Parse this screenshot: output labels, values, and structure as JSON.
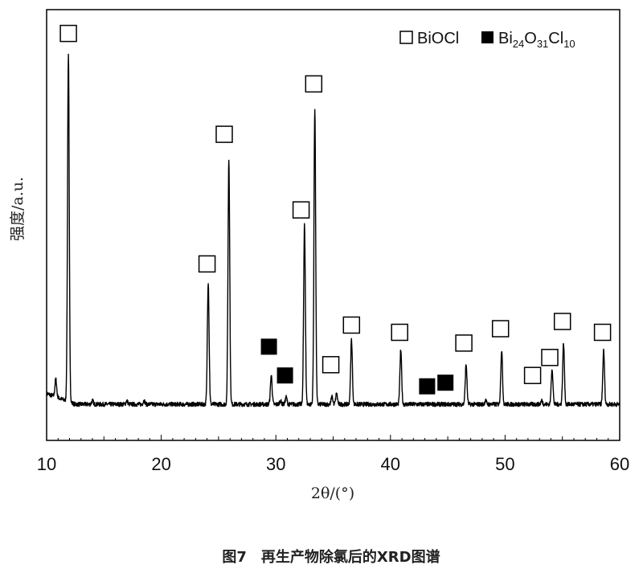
{
  "chart_data": {
    "type": "line",
    "xlabel": "2θ/(°)",
    "ylabel": "强度/a.u.",
    "xlim": [
      10,
      60
    ],
    "xticks": [
      10,
      20,
      30,
      40,
      50,
      60
    ],
    "grid": false,
    "legend": {
      "placement": "top-right",
      "entries": [
        {
          "marker": "open-square",
          "label": "BiOCl"
        },
        {
          "marker": "filled-square",
          "label_parts": [
            "Bi",
            "24",
            "O",
            "31",
            "Cl",
            "10"
          ]
        }
      ]
    },
    "baseline": 0.04,
    "peaks": [
      {
        "two_theta": 10.8,
        "intensity": 0.09,
        "phase": null
      },
      {
        "two_theta": 11.9,
        "intensity": 1.0,
        "phase": "BiOCl"
      },
      {
        "two_theta": 14.0,
        "intensity": 0.05,
        "phase": null
      },
      {
        "two_theta": 17.0,
        "intensity": 0.05,
        "phase": null
      },
      {
        "two_theta": 18.5,
        "intensity": 0.05,
        "phase": null
      },
      {
        "two_theta": 24.1,
        "intensity": 0.38,
        "phase": "BiOCl"
      },
      {
        "two_theta": 25.9,
        "intensity": 0.72,
        "phase": "BiOCl"
      },
      {
        "two_theta": 29.6,
        "intensity": 0.12,
        "phase": "Bi24O31Cl10"
      },
      {
        "two_theta": 30.4,
        "intensity": 0.05,
        "phase": null
      },
      {
        "two_theta": 30.9,
        "intensity": 0.06,
        "phase": "Bi24O31Cl10"
      },
      {
        "two_theta": 32.5,
        "intensity": 0.54,
        "phase": "BiOCl"
      },
      {
        "two_theta": 33.4,
        "intensity": 0.86,
        "phase": "BiOCl"
      },
      {
        "two_theta": 34.9,
        "intensity": 0.06,
        "phase": "BiOCl"
      },
      {
        "two_theta": 35.3,
        "intensity": 0.07,
        "phase": null
      },
      {
        "two_theta": 36.6,
        "intensity": 0.22,
        "phase": "BiOCl"
      },
      {
        "two_theta": 40.9,
        "intensity": 0.19,
        "phase": "BiOCl"
      },
      {
        "two_theta": 43.1,
        "intensity": 0.04,
        "phase": "Bi24O31Cl10"
      },
      {
        "two_theta": 44.9,
        "intensity": 0.04,
        "phase": "Bi24O31Cl10"
      },
      {
        "two_theta": 46.6,
        "intensity": 0.15,
        "phase": "BiOCl"
      },
      {
        "two_theta": 48.3,
        "intensity": 0.05,
        "phase": null
      },
      {
        "two_theta": 49.7,
        "intensity": 0.19,
        "phase": "BiOCl"
      },
      {
        "two_theta": 53.2,
        "intensity": 0.05,
        "phase": "BiOCl"
      },
      {
        "two_theta": 54.1,
        "intensity": 0.14,
        "phase": "BiOCl"
      },
      {
        "two_theta": 55.1,
        "intensity": 0.21,
        "phase": "BiOCl"
      },
      {
        "two_theta": 58.6,
        "intensity": 0.19,
        "phase": "BiOCl"
      }
    ],
    "markers": [
      {
        "type": "open",
        "two_theta": 11.9,
        "intensity": 1.07
      },
      {
        "type": "open",
        "two_theta": 24.0,
        "intensity": 0.43
      },
      {
        "type": "open",
        "two_theta": 25.5,
        "intensity": 0.79
      },
      {
        "type": "filled",
        "two_theta": 29.4,
        "intensity": 0.2
      },
      {
        "type": "filled",
        "two_theta": 30.8,
        "intensity": 0.12
      },
      {
        "type": "open",
        "two_theta": 32.2,
        "intensity": 0.58
      },
      {
        "type": "open",
        "two_theta": 33.3,
        "intensity": 0.93
      },
      {
        "type": "open",
        "two_theta": 34.8,
        "intensity": 0.15
      },
      {
        "type": "open",
        "two_theta": 36.6,
        "intensity": 0.26
      },
      {
        "type": "open",
        "two_theta": 40.8,
        "intensity": 0.24
      },
      {
        "type": "filled",
        "two_theta": 43.2,
        "intensity": 0.09
      },
      {
        "type": "filled",
        "two_theta": 44.8,
        "intensity": 0.1
      },
      {
        "type": "open",
        "two_theta": 46.4,
        "intensity": 0.21
      },
      {
        "type": "open",
        "two_theta": 49.6,
        "intensity": 0.25
      },
      {
        "type": "open",
        "two_theta": 52.4,
        "intensity": 0.12
      },
      {
        "type": "open",
        "two_theta": 53.9,
        "intensity": 0.17
      },
      {
        "type": "open",
        "two_theta": 55.0,
        "intensity": 0.27
      },
      {
        "type": "open",
        "two_theta": 58.5,
        "intensity": 0.24
      }
    ]
  },
  "caption": "图7　再生产物除氯后的XRD图谱"
}
